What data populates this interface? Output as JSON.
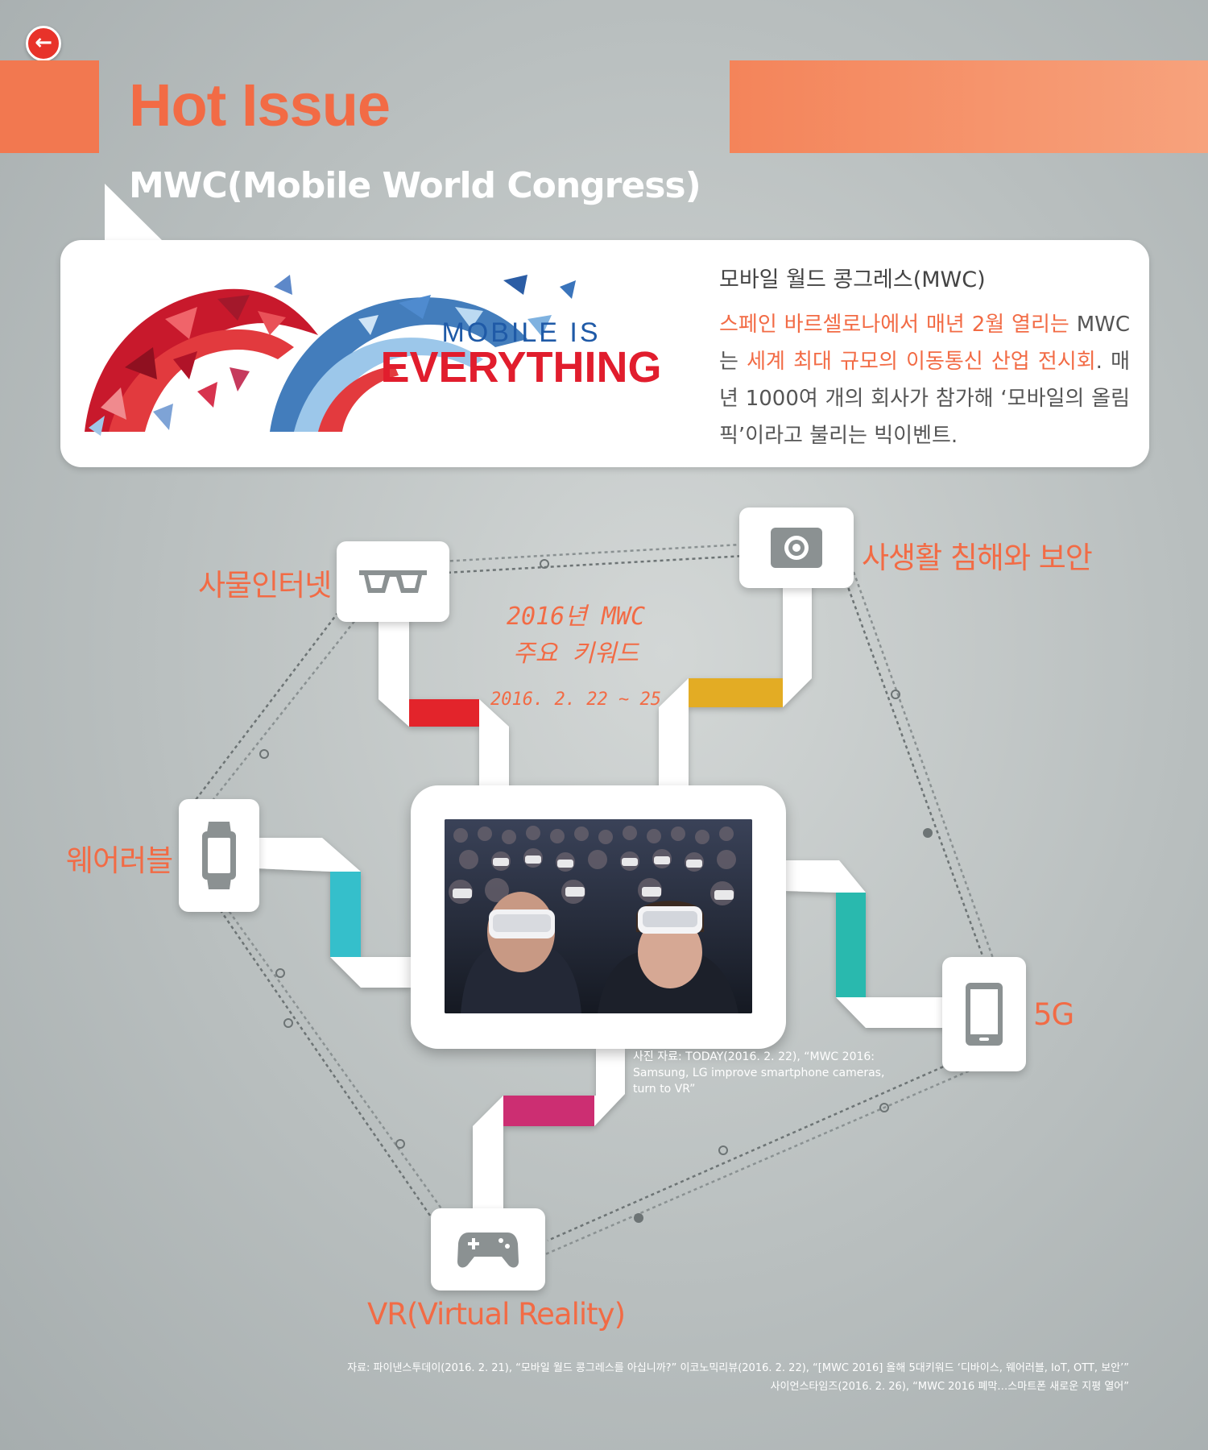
{
  "header": {
    "back_icon": "arrow-left-icon",
    "title": "Hot Issue",
    "section_title": "MWC(Mobile World Congress)"
  },
  "info_card": {
    "logo_line1": "MOBILE IS",
    "logo_line2": "EVERYTHING",
    "heading": "모바일 월드 콩그레스(MWC)",
    "body_parts": {
      "p1": "스페인 바르셀로나에서 매년 2월 열리는",
      "p2": "MWC는 ",
      "p3": "세계 최대 규모의 이동통신 산업 전시회",
      "p4": ". 매년 1000여 개의 회사가 참가해 ‘모바일의 올림픽’이라고 불리는 빅이벤트."
    }
  },
  "diagram": {
    "center_title_line1": "2016년 MWC",
    "center_title_line2": "주요 키워드",
    "center_date": "2016. 2. 22 ~ 25",
    "keywords": {
      "iot": {
        "label": "사물인터넷",
        "icon": "glasses-icon",
        "ribbon_color": "#e3242b"
      },
      "privacy": {
        "label": "사생활 침해와 보안",
        "icon": "camera-icon",
        "ribbon_color": "#e3ac24"
      },
      "wearable": {
        "label": "웨어러블",
        "icon": "smartwatch-icon",
        "ribbon_color": "#35bfcb"
      },
      "fiveg": {
        "label": "5G",
        "icon": "smartphone-icon",
        "ribbon_color": "#29b9ae"
      },
      "vr": {
        "label": "VR(Virtual Reality)",
        "icon": "gamepad-icon",
        "ribbon_color": "#cc2e72"
      }
    },
    "photo_caption": "사진 자료: TODAY(2016. 2. 22), “MWC 2016: Samsung, LG improve smartphone cameras, turn to VR”"
  },
  "sources": {
    "line1": "자료: 파이낸스투데이(2016. 2. 21), “모바일 월드 콩그레스를 아십니까?” 이코노믹리뷰(2016. 2. 22), “[MWC 2016] 올해 5대키워드 ‘디바이스, 웨어러블, IoT, OTT, 보안’”",
    "line2": "사이언스타임즈(2016. 2. 26), “MWC 2016 폐막…스마트폰 새로운 지평 열어”"
  }
}
